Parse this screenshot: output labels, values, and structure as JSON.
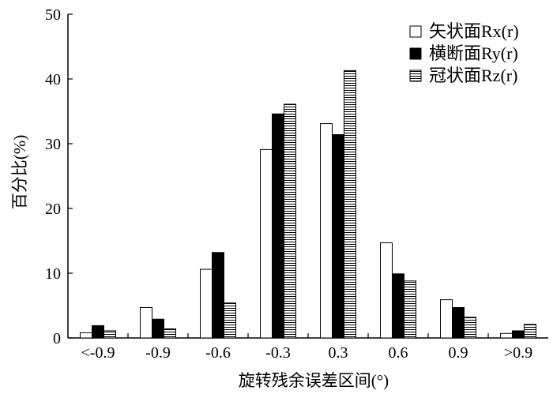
{
  "chart_data": {
    "type": "bar",
    "xlabel": "旋转残余误差区间(°)",
    "ylabel": "百分比(%)",
    "ylim": [
      0,
      50
    ],
    "yticks": [
      0,
      10,
      20,
      30,
      40,
      50
    ],
    "categories": [
      "<-0.9",
      "-0.9",
      "-0.6",
      "-0.3",
      "0.3",
      "0.6",
      "0.9",
      ">0.9"
    ],
    "legend_position": "top-right",
    "grid": false,
    "series": [
      {
        "name": "矢状面Rx(r)",
        "fill": "white",
        "values": [
          0.8,
          4.7,
          10.6,
          29.1,
          33.1,
          14.7,
          5.9,
          0.7
        ]
      },
      {
        "name": "横断面Ry(r)",
        "fill": "black",
        "values": [
          1.9,
          2.9,
          13.2,
          34.6,
          31.4,
          9.9,
          4.7,
          1.1
        ]
      },
      {
        "name": "冠状面Rz(r)",
        "fill": "hatched",
        "values": [
          1.1,
          1.4,
          5.4,
          36.1,
          41.3,
          8.8,
          3.2,
          2.1
        ]
      }
    ]
  }
}
